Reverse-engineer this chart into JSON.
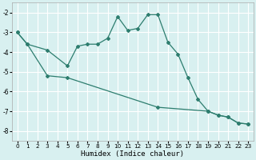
{
  "xlabel": "Humidex (Indice chaleur)",
  "bg_color": "#d8f0f0",
  "grid_color": "#ffffff",
  "line_color": "#2d7d6e",
  "line1_x": [
    0,
    1,
    3,
    5,
    6,
    7,
    8,
    9,
    10,
    11,
    12,
    13,
    14,
    15,
    16,
    17,
    18,
    19,
    20,
    21,
    22,
    23
  ],
  "line1_y": [
    -3.0,
    -3.6,
    -3.9,
    -4.7,
    -3.7,
    -3.6,
    -3.6,
    -3.3,
    -2.2,
    -2.9,
    -2.8,
    -2.1,
    -2.1,
    -3.5,
    -4.1,
    -5.3,
    -6.4,
    -7.0,
    -7.2,
    -7.3,
    -7.6,
    -7.65
  ],
  "line2_x": [
    0,
    1,
    3,
    5,
    14,
    19,
    20,
    21,
    22,
    23
  ],
  "line2_y": [
    -3.0,
    -3.6,
    -5.2,
    -5.3,
    -6.8,
    -7.0,
    -7.2,
    -7.3,
    -7.6,
    -7.65
  ],
  "xlim": [
    -0.5,
    23.5
  ],
  "ylim": [
    -8.5,
    -1.5
  ],
  "yticks": [
    -8,
    -7,
    -6,
    -5,
    -4,
    -3,
    -2
  ],
  "xticks": [
    0,
    1,
    2,
    3,
    4,
    5,
    6,
    7,
    8,
    9,
    10,
    11,
    12,
    13,
    14,
    15,
    16,
    17,
    18,
    19,
    20,
    21,
    22,
    23
  ]
}
